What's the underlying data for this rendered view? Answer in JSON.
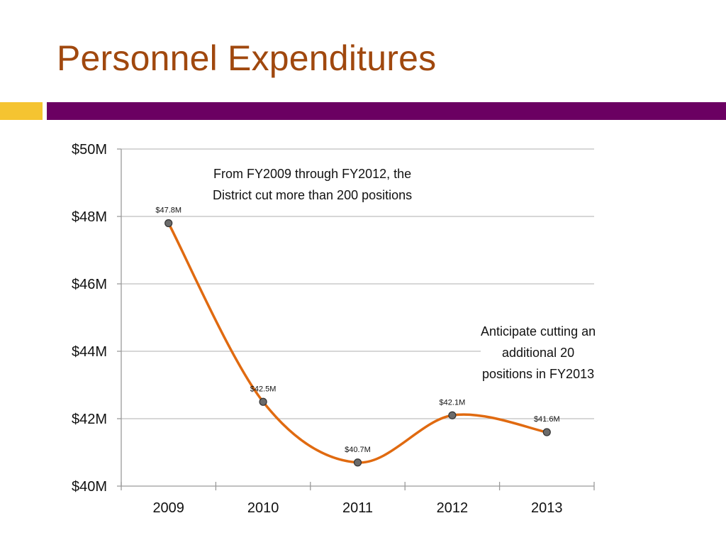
{
  "slide": {
    "title": "Personnel Expenditures",
    "colors": {
      "title": "#a0480e",
      "accent_bar": "#6b0062",
      "accent_square": "#f5c431",
      "line": "#e06a10",
      "marker_fill": "#6b6b6b",
      "marker_stroke": "#333333",
      "grid": "#bfbfbf"
    }
  },
  "chart_data": {
    "type": "line",
    "categories": [
      "2009",
      "2010",
      "2011",
      "2012",
      "2013"
    ],
    "values": [
      47.8,
      42.5,
      40.7,
      42.1,
      41.6
    ],
    "data_labels": [
      "$47.8M",
      "$42.5M",
      "$40.7M",
      "$42.1M",
      "$41.6M"
    ],
    "y_ticks": [
      {
        "value": 50,
        "label": "$50M"
      },
      {
        "value": 48,
        "label": "$48M"
      },
      {
        "value": 46,
        "label": "$46M"
      },
      {
        "value": 44,
        "label": "$44M"
      },
      {
        "value": 42,
        "label": "$42M"
      },
      {
        "value": 40,
        "label": "$40M"
      }
    ],
    "ylim": [
      40,
      50
    ],
    "grid": true,
    "smooth": true,
    "annotations": [
      {
        "lines": [
          "From FY2009 through FY2012, the",
          "District cut more than 200 positions"
        ]
      },
      {
        "lines": [
          "Anticipate cutting an",
          "additional 20",
          "positions in FY2013"
        ]
      }
    ]
  }
}
